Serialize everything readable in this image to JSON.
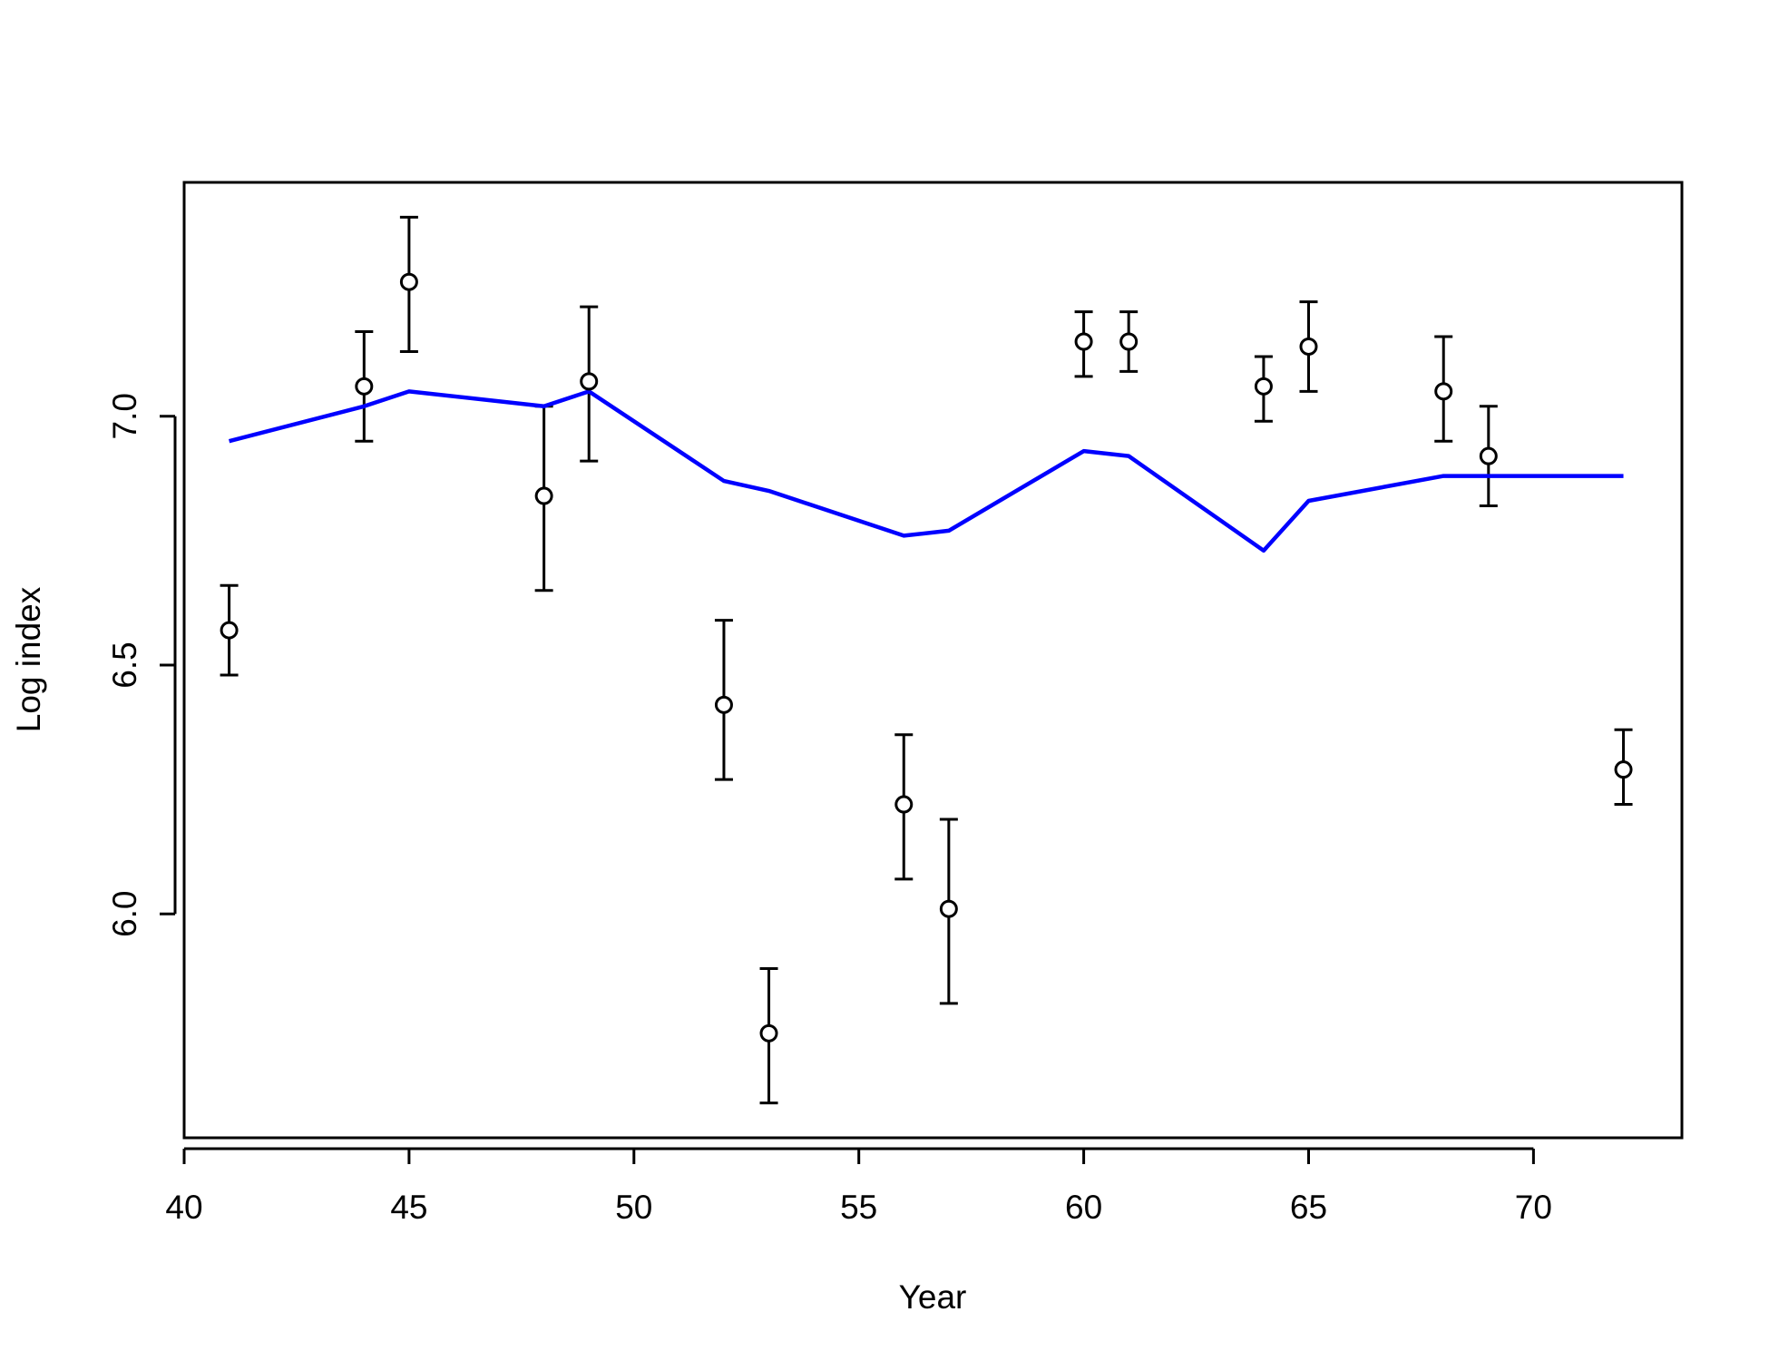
{
  "chart_data": {
    "type": "scatter",
    "title": "",
    "xlabel": "Year",
    "ylabel": "Log index",
    "xlim": [
      40,
      73.3
    ],
    "ylim": [
      5.55,
      7.47
    ],
    "x_ticks": [
      40,
      45,
      50,
      55,
      60,
      65,
      70
    ],
    "y_ticks": [
      6.0,
      6.5,
      7.0
    ],
    "x_tick_labels": [
      "40",
      "45",
      "50",
      "55",
      "60",
      "65",
      "70"
    ],
    "y_tick_labels": [
      "6.0",
      "6.5",
      "7.0"
    ],
    "grid": false,
    "legend": "none",
    "series": [
      {
        "type": "errorbar-points",
        "color": "#000000",
        "marker": "open-circle",
        "points": [
          {
            "x": 41,
            "y": 6.57,
            "lo": 6.48,
            "hi": 6.66
          },
          {
            "x": 44,
            "y": 7.06,
            "lo": 6.95,
            "hi": 7.17
          },
          {
            "x": 45,
            "y": 7.27,
            "lo": 7.13,
            "hi": 7.4
          },
          {
            "x": 48,
            "y": 6.84,
            "lo": 6.65,
            "hi": 7.02
          },
          {
            "x": 49,
            "y": 7.07,
            "lo": 6.91,
            "hi": 7.22
          },
          {
            "x": 52,
            "y": 6.42,
            "lo": 6.27,
            "hi": 6.59
          },
          {
            "x": 53,
            "y": 5.76,
            "lo": 5.62,
            "hi": 5.89
          },
          {
            "x": 56,
            "y": 6.22,
            "lo": 6.07,
            "hi": 6.36
          },
          {
            "x": 57,
            "y": 6.01,
            "lo": 5.82,
            "hi": 6.19
          },
          {
            "x": 60,
            "y": 7.15,
            "lo": 7.08,
            "hi": 7.21
          },
          {
            "x": 61,
            "y": 7.15,
            "lo": 7.09,
            "hi": 7.21
          },
          {
            "x": 64,
            "y": 7.06,
            "lo": 6.99,
            "hi": 7.12
          },
          {
            "x": 65,
            "y": 7.14,
            "lo": 7.05,
            "hi": 7.23
          },
          {
            "x": 68,
            "y": 7.05,
            "lo": 6.95,
            "hi": 7.16
          },
          {
            "x": 69,
            "y": 6.92,
            "lo": 6.82,
            "hi": 7.02
          },
          {
            "x": 72,
            "y": 6.29,
            "lo": 6.22,
            "hi": 6.37
          }
        ]
      },
      {
        "type": "line",
        "color": "#0000ff",
        "points": [
          {
            "x": 41,
            "y": 6.95
          },
          {
            "x": 44,
            "y": 7.02
          },
          {
            "x": 45,
            "y": 7.05
          },
          {
            "x": 48,
            "y": 7.02
          },
          {
            "x": 49,
            "y": 7.05
          },
          {
            "x": 52,
            "y": 6.87
          },
          {
            "x": 53,
            "y": 6.85
          },
          {
            "x": 56,
            "y": 6.76
          },
          {
            "x": 57,
            "y": 6.77
          },
          {
            "x": 60,
            "y": 6.93
          },
          {
            "x": 61,
            "y": 6.92
          },
          {
            "x": 64,
            "y": 6.73
          },
          {
            "x": 65,
            "y": 6.83
          },
          {
            "x": 68,
            "y": 6.88
          },
          {
            "x": 69,
            "y": 6.88
          },
          {
            "x": 70,
            "y": 6.88
          },
          {
            "x": 72,
            "y": 6.88
          }
        ]
      }
    ]
  }
}
